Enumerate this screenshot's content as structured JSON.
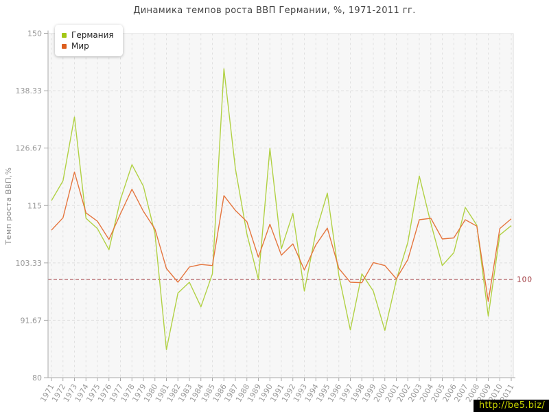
{
  "chart_data": {
    "type": "line",
    "title": "Динамика темпов роста ВВП Германии, %, 1971-2011 гг.",
    "ylabel": "Темп роста ВВП,%",
    "ylim": [
      80,
      150
    ],
    "y_ticks": [
      150,
      138.33,
      126.67,
      115,
      103.33,
      91.67,
      80
    ],
    "y_tick_labels": [
      "150",
      "138.33",
      "126.67",
      "115",
      "103.33",
      "91.67",
      "80"
    ],
    "x": [
      1971,
      1972,
      1973,
      1974,
      1975,
      1976,
      1977,
      1978,
      1979,
      1980,
      1981,
      1982,
      1983,
      1984,
      1985,
      1986,
      1987,
      1988,
      1989,
      1990,
      1991,
      1992,
      1993,
      1994,
      1995,
      1996,
      1997,
      1998,
      1999,
      2000,
      2001,
      2002,
      2003,
      2004,
      2005,
      2006,
      2007,
      2008,
      2009,
      2010,
      2011
    ],
    "series": [
      {
        "name": "Германия",
        "line_color": "#b1d144",
        "swatch_color": "#a3c717",
        "values": [
          116,
          120,
          133,
          112.4,
          110.3,
          106,
          116.2,
          123.3,
          118.9,
          109.3,
          85.7,
          97.2,
          99.4,
          94.4,
          101.1,
          142.8,
          122.5,
          109.2,
          100,
          126.6,
          106.2,
          113.4,
          97.6,
          109.6,
          117.5,
          100.8,
          89.7,
          101.1,
          97.6,
          89.6,
          99.8,
          107.5,
          121,
          111.4,
          102.8,
          105.4,
          114.6,
          111,
          92.5,
          109,
          110.9
        ]
      },
      {
        "name": "Мир",
        "line_color": "#e5763f",
        "swatch_color": "#dc5e1e",
        "values": [
          110,
          112.5,
          121.8,
          113.5,
          111.8,
          108.1,
          113.3,
          118.3,
          113.8,
          110.2,
          102.2,
          99.4,
          102.5,
          103,
          102.8,
          117,
          114,
          111.7,
          104.5,
          111.2,
          104.9,
          107.2,
          101.9,
          107,
          110.4,
          102.2,
          99.4,
          99.3,
          103.4,
          102.8,
          100.1,
          104,
          112.1,
          112.4,
          108.2,
          108.4,
          112.1,
          110.8,
          95.5,
          110.3,
          112.3
        ]
      }
    ],
    "benchmark": {
      "value": 100,
      "label": "100",
      "color": "#9c3137"
    },
    "grid": true,
    "legend_position": "top-left",
    "plot_bg": "#f7f7f7",
    "axis_color": "#a9a9a9",
    "grid_color": "#e0e0e0",
    "tick_label_color": "#999999"
  },
  "watermark": {
    "text": "http://be5.biz/"
  }
}
